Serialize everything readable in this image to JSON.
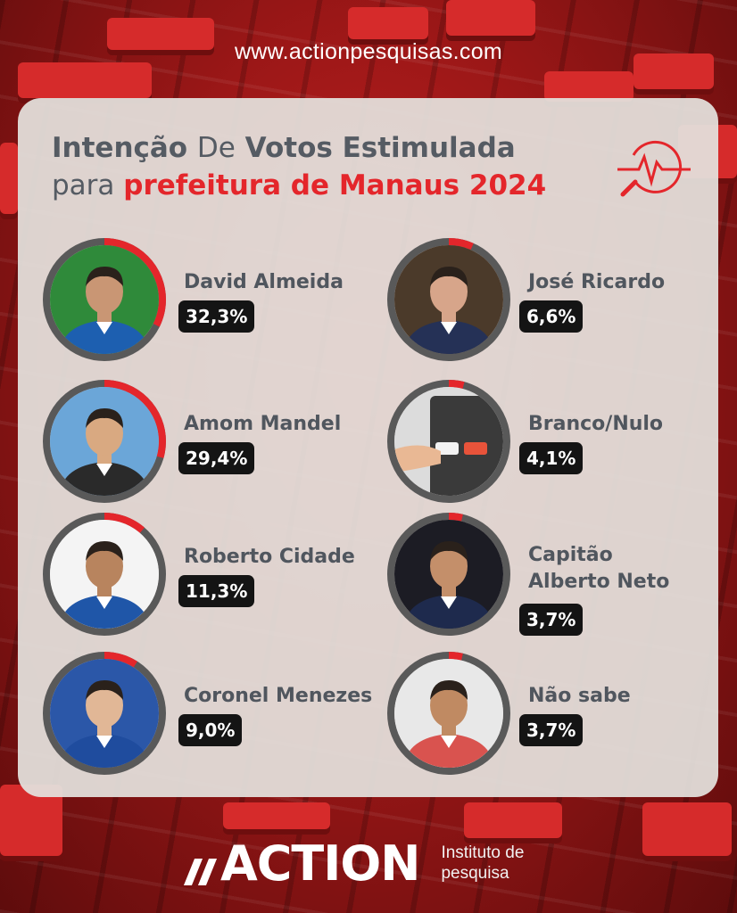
{
  "website": "www.actionpesquisas.com",
  "title": {
    "word1": "Intenção",
    "word2": "De",
    "word3": "Votos Estimulada",
    "line2_prefix": "para",
    "line2_highlight": "prefeitura de Manaus 2024"
  },
  "brand": {
    "name": "ACTION",
    "tagline_line1": "Instituto de",
    "tagline_line2": "pesquisa"
  },
  "colors": {
    "accent_red": "#e4262b",
    "ring_track": "#595959",
    "label_bg": "#141414",
    "panel": "#e4e2de"
  },
  "chart_data": {
    "type": "bar",
    "title": "Intenção De Votos Estimulada para prefeitura de Manaus 2024",
    "unit": "%",
    "categories": [
      "David Almeida",
      "Amom Mandel",
      "Roberto Cidade",
      "Coronel Menezes",
      "José Ricardo",
      "Branco/Nulo",
      "Capitão Alberto Neto",
      "Não sabe"
    ],
    "values": [
      32.3,
      29.4,
      11.3,
      9.0,
      6.6,
      4.1,
      3.7,
      3.7
    ],
    "value_labels": [
      "32,3%",
      "29,4%",
      "11,3%",
      "9,0%",
      "6,6%",
      "4,1%",
      "3,7%",
      "3,7%"
    ],
    "name_lines": [
      [
        "David Almeida"
      ],
      [
        "Amom Mandel"
      ],
      [
        "Roberto Cidade"
      ],
      [
        "Coronel Menezes"
      ],
      [
        "José Ricardo"
      ],
      [
        "Branco/Nulo"
      ],
      [
        "Capitão",
        "Alberto Neto"
      ],
      [
        "Não sabe"
      ]
    ],
    "avatar_types": [
      "person",
      "person",
      "person",
      "person",
      "person",
      "ballot-machine",
      "person",
      "person"
    ]
  }
}
